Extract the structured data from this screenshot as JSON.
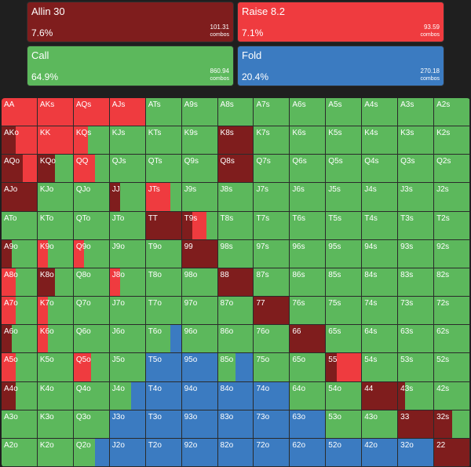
{
  "colors": {
    "allin": "#7f1d1d",
    "raise": "#ef3b3f",
    "call": "#5cb85c",
    "fold": "#3b7bc1"
  },
  "summary": {
    "allin": {
      "name": "Allin 30",
      "pct": "7.6%",
      "combos": "101.31",
      "unit": "combos"
    },
    "raise": {
      "name": "Raise 8.2",
      "pct": "7.1%",
      "combos": "93.59",
      "unit": "combos"
    },
    "call": {
      "name": "Call",
      "pct": "64.9%",
      "combos": "860.94",
      "unit": "combos"
    },
    "fold": {
      "name": "Fold",
      "pct": "20.4%",
      "combos": "270.18",
      "unit": "combos"
    }
  },
  "hands": [
    [
      "AA",
      "AKs",
      "AQs",
      "AJs",
      "ATs",
      "A9s",
      "A8s",
      "A7s",
      "A6s",
      "A5s",
      "A4s",
      "A3s",
      "A2s"
    ],
    [
      "AKo",
      "KK",
      "KQs",
      "KJs",
      "KTs",
      "K9s",
      "K8s",
      "K7s",
      "K6s",
      "K5s",
      "K4s",
      "K3s",
      "K2s"
    ],
    [
      "AQo",
      "KQo",
      "QQ",
      "QJs",
      "QTs",
      "Q9s",
      "Q8s",
      "Q7s",
      "Q6s",
      "Q5s",
      "Q4s",
      "Q3s",
      "Q2s"
    ],
    [
      "AJo",
      "KJo",
      "QJo",
      "JJ",
      "JTs",
      "J9s",
      "J8s",
      "J7s",
      "J6s",
      "J5s",
      "J4s",
      "J3s",
      "J2s"
    ],
    [
      "ATo",
      "KTo",
      "QTo",
      "JTo",
      "TT",
      "T9s",
      "T8s",
      "T7s",
      "T6s",
      "T5s",
      "T4s",
      "T3s",
      "T2s"
    ],
    [
      "A9o",
      "K9o",
      "Q9o",
      "J9o",
      "T9o",
      "99",
      "98s",
      "97s",
      "96s",
      "95s",
      "94s",
      "93s",
      "92s"
    ],
    [
      "A8o",
      "K8o",
      "Q8o",
      "J8o",
      "T8o",
      "98o",
      "88",
      "87s",
      "86s",
      "85s",
      "84s",
      "83s",
      "82s"
    ],
    [
      "A7o",
      "K7o",
      "Q7o",
      "J7o",
      "T7o",
      "97o",
      "87o",
      "77",
      "76s",
      "75s",
      "74s",
      "73s",
      "72s"
    ],
    [
      "A6o",
      "K6o",
      "Q6o",
      "J6o",
      "T6o",
      "96o",
      "86o",
      "76o",
      "66",
      "65s",
      "64s",
      "63s",
      "62s"
    ],
    [
      "A5o",
      "K5o",
      "Q5o",
      "J5o",
      "T5o",
      "95o",
      "85o",
      "75o",
      "65o",
      "55",
      "54s",
      "53s",
      "52s"
    ],
    [
      "A4o",
      "K4o",
      "Q4o",
      "J4o",
      "T4o",
      "94o",
      "84o",
      "74o",
      "64o",
      "54o",
      "44",
      "43s",
      "42s"
    ],
    [
      "A3o",
      "K3o",
      "Q3o",
      "J3o",
      "T3o",
      "93o",
      "83o",
      "73o",
      "63o",
      "53o",
      "43o",
      "33",
      "32s"
    ],
    [
      "A2o",
      "K2o",
      "Q2o",
      "J2o",
      "T2o",
      "92o",
      "82o",
      "72o",
      "62o",
      "52o",
      "42o",
      "32o",
      "22"
    ]
  ],
  "special_freqs": {
    "AA": [
      0,
      1,
      0,
      0
    ],
    "AKs": [
      0,
      1,
      0,
      0
    ],
    "AQs": [
      0,
      1,
      0,
      0
    ],
    "AJs": [
      0,
      1,
      0,
      0
    ],
    "AKo": [
      0.4,
      0.6,
      0,
      0
    ],
    "KK": [
      0,
      1,
      0,
      0
    ],
    "KQs": [
      0,
      0.4,
      0.6,
      0
    ],
    "AQo": [
      0.6,
      0.4,
      0,
      0
    ],
    "KQo": [
      0.5,
      0,
      0.5,
      0
    ],
    "QQ": [
      0,
      0.6,
      0.4,
      0
    ],
    "AJo": [
      1,
      0,
      0,
      0
    ],
    "JJ": [
      0.3,
      0,
      0.7,
      0
    ],
    "JTs": [
      0,
      0.7,
      0.3,
      0
    ],
    "TT": [
      1,
      0,
      0,
      0
    ],
    "T9s": [
      0.3,
      0.4,
      0.3,
      0
    ],
    "99": [
      1,
      0,
      0,
      0
    ],
    "88": [
      1,
      0,
      0,
      0
    ],
    "77": [
      1,
      0,
      0,
      0
    ],
    "66": [
      1,
      0,
      0,
      0
    ],
    "55": [
      0.3,
      0.7,
      0,
      0
    ],
    "44": [
      1,
      0,
      0,
      0
    ],
    "33": [
      1,
      0,
      0,
      0
    ],
    "22": [
      1,
      0,
      0,
      0
    ],
    "K8s": [
      1,
      0,
      0,
      0
    ],
    "Q8s": [
      1,
      0,
      0,
      0
    ],
    "A9o": [
      0.3,
      0,
      0.7,
      0
    ],
    "K9o": [
      0,
      0.3,
      0.7,
      0
    ],
    "Q9o": [
      0,
      0.3,
      0.7,
      0
    ],
    "A8o": [
      0,
      0.4,
      0.6,
      0
    ],
    "K8o": [
      0.5,
      0,
      0.5,
      0
    ],
    "J8o": [
      0,
      0.3,
      0.7,
      0
    ],
    "A7o": [
      0,
      0.4,
      0.6,
      0
    ],
    "K7o": [
      0,
      0.3,
      0.7,
      0
    ],
    "A6o": [
      0.3,
      0,
      0.7,
      0
    ],
    "K6o": [
      0,
      0.3,
      0.7,
      0
    ],
    "T6o": [
      0,
      0,
      0.7,
      0.3
    ],
    "A5o": [
      0,
      0.4,
      0.6,
      0
    ],
    "Q5o": [
      0,
      0.5,
      0.5,
      0
    ],
    "T5o": [
      0,
      0,
      0,
      1
    ],
    "95o": [
      0,
      0,
      0,
      1
    ],
    "85o": [
      0,
      0,
      0.5,
      0.5
    ],
    "75o": [
      0,
      0,
      1,
      0
    ],
    "A4o": [
      0.4,
      0,
      0.6,
      0
    ],
    "J4o": [
      0,
      0,
      0.6,
      0.4
    ],
    "T4o": [
      0,
      0,
      0,
      1
    ],
    "94o": [
      0,
      0,
      0,
      1
    ],
    "84o": [
      0,
      0,
      0,
      1
    ],
    "74o": [
      0,
      0,
      0,
      1
    ],
    "43s": [
      0.2,
      0,
      0.8,
      0
    ],
    "J3o": [
      0,
      0,
      0,
      1
    ],
    "T3o": [
      0,
      0,
      0,
      1
    ],
    "93o": [
      0,
      0,
      0,
      1
    ],
    "83o": [
      0,
      0,
      0,
      1
    ],
    "73o": [
      0,
      0,
      0,
      1
    ],
    "63o": [
      0,
      0,
      0,
      1
    ],
    "32s": [
      0.5,
      0,
      0.5,
      0
    ],
    "J2o": [
      0,
      0,
      0,
      1
    ],
    "T2o": [
      0,
      0,
      0,
      1
    ],
    "92o": [
      0,
      0,
      0,
      1
    ],
    "82o": [
      0,
      0,
      0,
      1
    ],
    "72o": [
      0,
      0,
      0,
      1
    ],
    "62o": [
      0,
      0,
      0,
      1
    ],
    "52o": [
      0,
      0,
      0,
      1
    ],
    "42o": [
      0,
      0,
      0,
      1
    ],
    "32o": [
      0,
      0,
      0,
      1
    ],
    "Q2o": [
      0,
      0,
      0.6,
      0.4
    ]
  }
}
